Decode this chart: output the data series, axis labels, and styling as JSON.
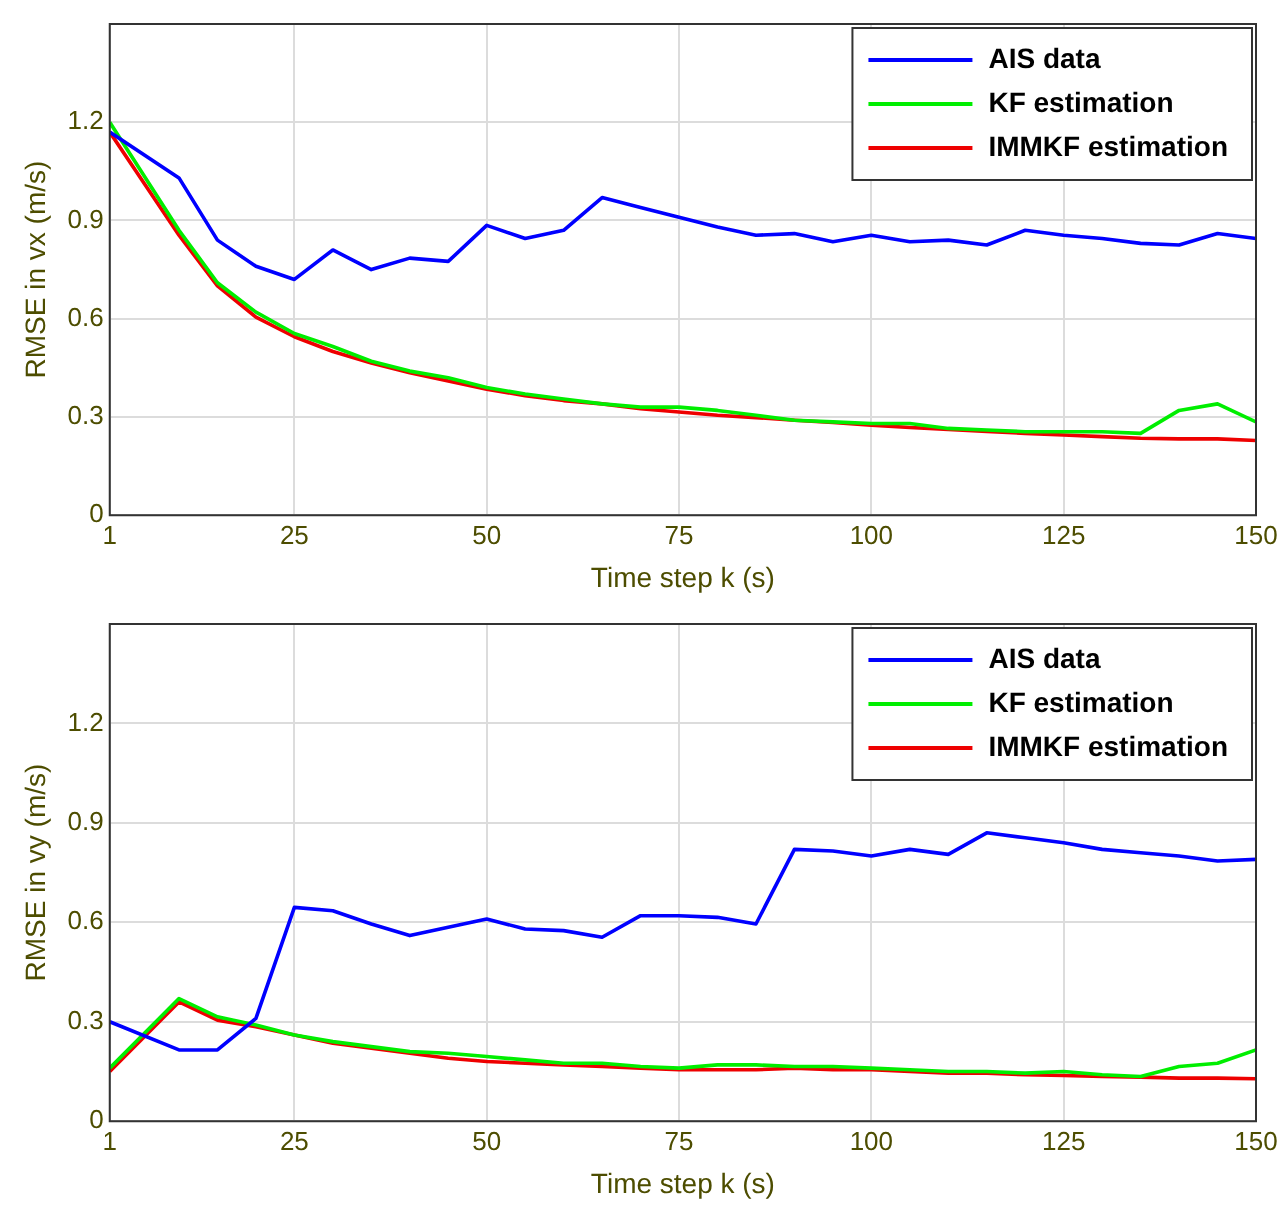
{
  "chart_data": [
    {
      "type": "line",
      "xlabel": "Time step k (s)",
      "ylabel": "RMSE in vx (m/s)",
      "x": [
        1,
        10,
        15,
        20,
        25,
        30,
        35,
        40,
        45,
        50,
        55,
        60,
        65,
        70,
        75,
        80,
        85,
        90,
        95,
        100,
        105,
        110,
        115,
        120,
        125,
        130,
        135,
        140,
        145,
        150
      ],
      "series": [
        {
          "name": "AIS data",
          "color": "#0000ff",
          "values": [
            1.17,
            1.03,
            0.84,
            0.76,
            0.72,
            0.81,
            0.75,
            0.785,
            0.775,
            0.885,
            0.845,
            0.87,
            0.97,
            0.94,
            0.91,
            0.88,
            0.855,
            0.86,
            0.835,
            0.855,
            0.835,
            0.84,
            0.825,
            0.87,
            0.855,
            0.845,
            0.83,
            0.825,
            0.86,
            0.845
          ]
        },
        {
          "name": "KF estimation",
          "color": "#00ee00",
          "values": [
            1.2,
            0.87,
            0.71,
            0.62,
            0.555,
            0.515,
            0.47,
            0.44,
            0.42,
            0.39,
            0.37,
            0.355,
            0.34,
            0.33,
            0.33,
            0.32,
            0.305,
            0.29,
            0.285,
            0.28,
            0.28,
            0.265,
            0.26,
            0.255,
            0.255,
            0.255,
            0.25,
            0.32,
            0.34,
            0.285
          ]
        },
        {
          "name": "IMMKF estimation",
          "color": "#ee0000",
          "values": [
            1.17,
            0.855,
            0.7,
            0.605,
            0.545,
            0.5,
            0.465,
            0.435,
            0.41,
            0.385,
            0.365,
            0.35,
            0.34,
            0.325,
            0.315,
            0.305,
            0.298,
            0.29,
            0.283,
            0.275,
            0.268,
            0.262,
            0.256,
            0.25,
            0.245,
            0.24,
            0.235,
            0.233,
            0.233,
            0.228
          ]
        }
      ],
      "xlim": [
        1,
        150
      ],
      "xticks": [
        1,
        25,
        50,
        75,
        100,
        125,
        150
      ],
      "ylim": [
        0,
        1.5
      ],
      "yticks": [
        0,
        0.3,
        0.6,
        0.9,
        1.2
      ],
      "grid": true,
      "legend": "top right",
      "marker": "none",
      "line_style": "solid"
    },
    {
      "type": "line",
      "xlabel": "Time step k (s)",
      "ylabel": "RMSE in vy (m/s)",
      "x": [
        1,
        10,
        15,
        20,
        25,
        30,
        35,
        40,
        45,
        50,
        55,
        60,
        65,
        70,
        75,
        80,
        85,
        90,
        95,
        100,
        105,
        110,
        115,
        120,
        125,
        130,
        135,
        140,
        145,
        150
      ],
      "series": [
        {
          "name": "AIS data",
          "color": "#0000ff",
          "values": [
            0.3,
            0.215,
            0.215,
            0.31,
            0.645,
            0.635,
            0.595,
            0.56,
            0.585,
            0.61,
            0.58,
            0.575,
            0.555,
            0.62,
            0.62,
            0.615,
            0.595,
            0.82,
            0.815,
            0.8,
            0.82,
            0.805,
            0.87,
            0.855,
            0.84,
            0.82,
            0.81,
            0.8,
            0.785,
            0.79
          ]
        },
        {
          "name": "KF estimation",
          "color": "#00ee00",
          "values": [
            0.16,
            0.37,
            0.315,
            0.29,
            0.26,
            0.24,
            0.225,
            0.21,
            0.205,
            0.195,
            0.185,
            0.175,
            0.175,
            0.165,
            0.16,
            0.17,
            0.17,
            0.165,
            0.165,
            0.16,
            0.155,
            0.15,
            0.15,
            0.145,
            0.15,
            0.14,
            0.135,
            0.165,
            0.175,
            0.215
          ]
        },
        {
          "name": "IMMKF estimation",
          "color": "#ee0000",
          "values": [
            0.15,
            0.36,
            0.305,
            0.285,
            0.26,
            0.235,
            0.22,
            0.205,
            0.19,
            0.18,
            0.175,
            0.17,
            0.165,
            0.16,
            0.155,
            0.155,
            0.155,
            0.16,
            0.155,
            0.155,
            0.15,
            0.145,
            0.145,
            0.14,
            0.138,
            0.135,
            0.133,
            0.13,
            0.13,
            0.128
          ]
        }
      ],
      "xlim": [
        1,
        150
      ],
      "xticks": [
        1,
        25,
        50,
        75,
        100,
        125,
        150
      ],
      "ylim": [
        0,
        1.5
      ],
      "yticks": [
        0,
        0.3,
        0.6,
        0.9,
        1.2
      ],
      "grid": true,
      "legend": "top right",
      "marker": "none",
      "line_style": "solid"
    }
  ]
}
